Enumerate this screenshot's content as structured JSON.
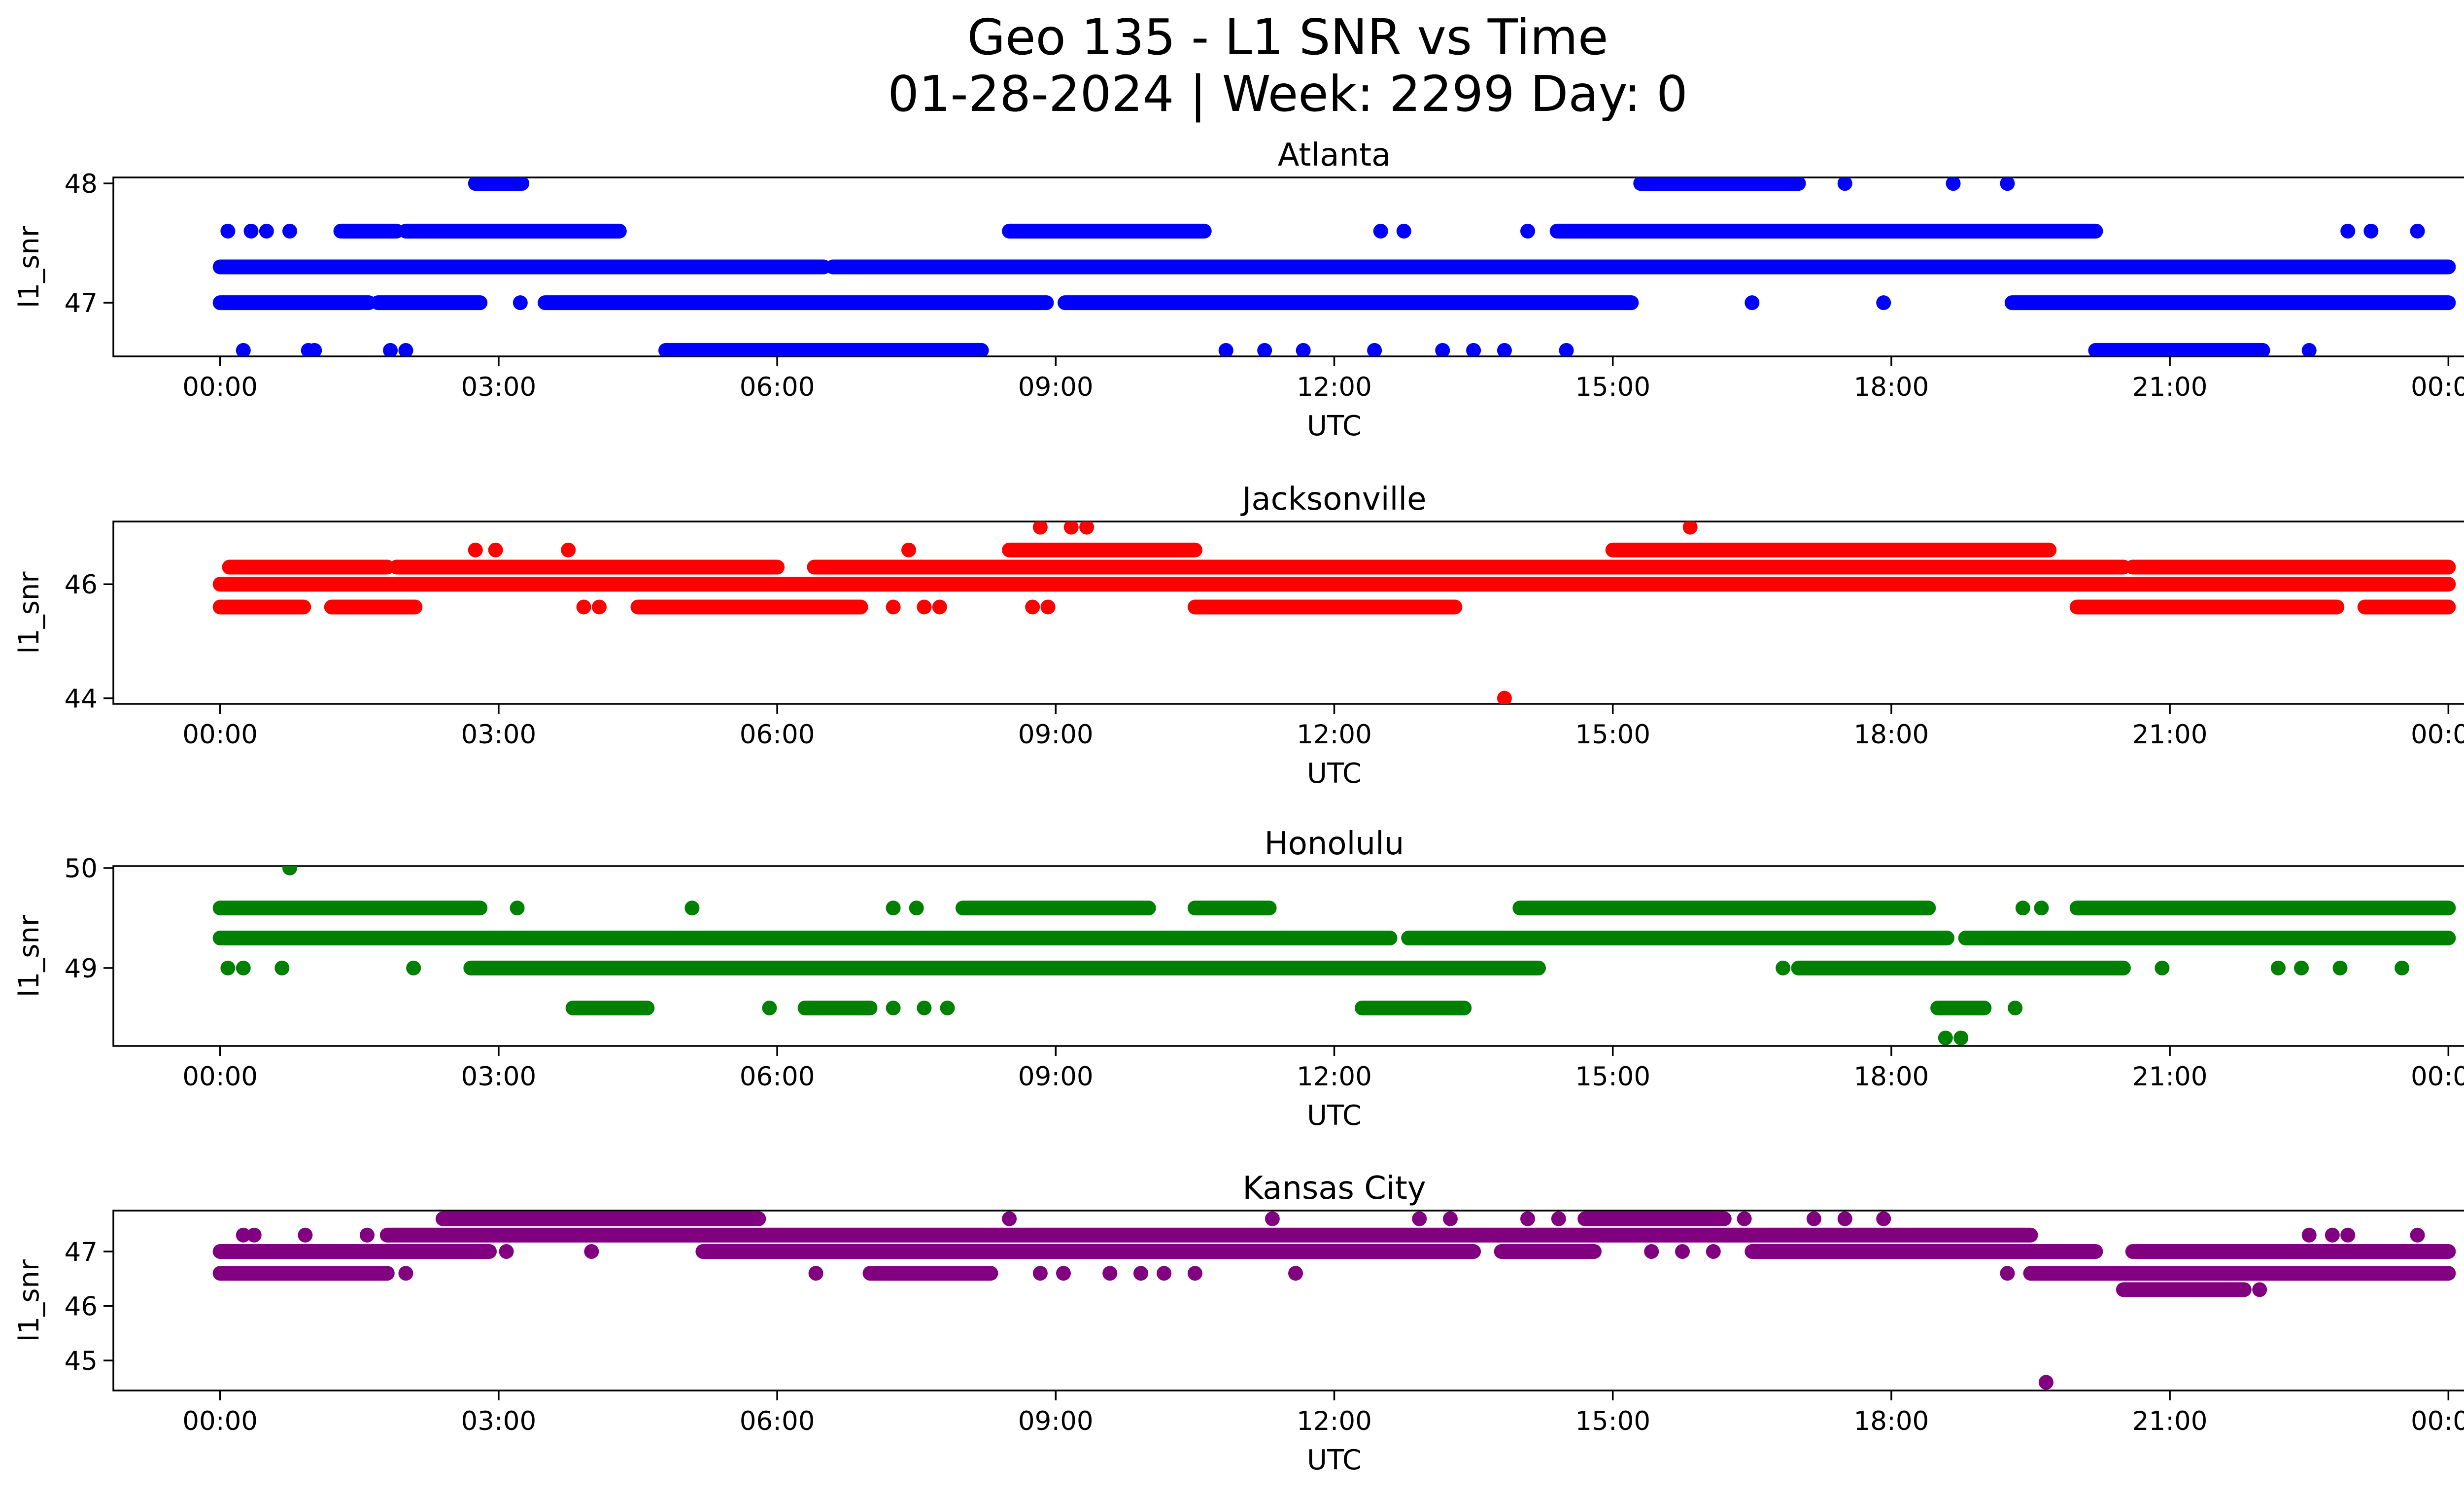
{
  "figure": {
    "title_line1": "Geo 135 - L1 SNR vs Time",
    "title_line2": "01-28-2024 | Week: 2299 Day: 0"
  },
  "chart_data": [
    {
      "type": "scatter",
      "title": "Atlanta",
      "xlabel": "UTC",
      "ylabel": "l1_snr",
      "color": "#0000ff",
      "xlim_hours": [
        -1.15,
        25.15
      ],
      "ylim": [
        46.55,
        48.05
      ],
      "xticks": [
        "00:00",
        "03:00",
        "06:00",
        "09:00",
        "12:00",
        "15:00",
        "18:00",
        "21:00",
        "00:00"
      ],
      "yticks": [
        47,
        48
      ],
      "grid": false,
      "segments": [
        {
          "y": 47.3,
          "x": [
            [
              0.0,
              6.5
            ],
            [
              6.6,
              15.2
            ],
            [
              15.2,
              24.0
            ]
          ]
        },
        {
          "y": 47.0,
          "x": [
            [
              0.0,
              1.6
            ],
            [
              1.7,
              2.8
            ],
            [
              3.5,
              8.9
            ],
            [
              9.1,
              15.2
            ],
            [
              19.3,
              24.0
            ]
          ]
        },
        {
          "y": 47.6,
          "x": [
            [
              1.3,
              1.9
            ],
            [
              2.0,
              4.3
            ],
            [
              8.5,
              10.6
            ],
            [
              14.4,
              20.2
            ]
          ]
        },
        {
          "y": 46.6,
          "x": [
            [
              4.8,
              8.2
            ],
            [
              20.2,
              22.0
            ]
          ]
        },
        {
          "y": 48.0,
          "x": [
            [
              2.75,
              3.25
            ],
            [
              15.3,
              17.0
            ]
          ]
        }
      ],
      "points": [
        {
          "t": "00:05",
          "y": 47.6
        },
        {
          "t": "00:20",
          "y": 47.6
        },
        {
          "t": "00:30",
          "y": 47.6
        },
        {
          "t": "00:45",
          "y": 47.6
        },
        {
          "t": "00:15",
          "y": 46.6
        },
        {
          "t": "00:57",
          "y": 46.6
        },
        {
          "t": "01:01",
          "y": 46.6
        },
        {
          "t": "01:50",
          "y": 46.6
        },
        {
          "t": "02:00",
          "y": 46.6
        },
        {
          "t": "03:14",
          "y": 47.0
        },
        {
          "t": "10:50",
          "y": 46.6
        },
        {
          "t": "11:15",
          "y": 46.6
        },
        {
          "t": "11:40",
          "y": 46.6
        },
        {
          "t": "12:26",
          "y": 46.6
        },
        {
          "t": "12:30",
          "y": 47.6
        },
        {
          "t": "12:45",
          "y": 47.6
        },
        {
          "t": "13:10",
          "y": 46.6
        },
        {
          "t": "13:30",
          "y": 46.6
        },
        {
          "t": "13:50",
          "y": 46.6
        },
        {
          "t": "14:05",
          "y": 47.6
        },
        {
          "t": "14:30",
          "y": 46.6
        },
        {
          "t": "16:30",
          "y": 47.0
        },
        {
          "t": "17:30",
          "y": 48.0
        },
        {
          "t": "17:55",
          "y": 47.0
        },
        {
          "t": "18:40",
          "y": 48.0
        },
        {
          "t": "19:15",
          "y": 48.0
        },
        {
          "t": "22:30",
          "y": 46.6
        },
        {
          "t": "22:55",
          "y": 47.6
        },
        {
          "t": "23:10",
          "y": 47.6
        },
        {
          "t": "23:40",
          "y": 47.6
        }
      ]
    },
    {
      "type": "scatter",
      "title": "Jacksonville",
      "xlabel": "UTC",
      "ylabel": "l1_snr",
      "color": "#ff0000",
      "xlim_hours": [
        -1.15,
        25.15
      ],
      "ylim": [
        43.9,
        47.1
      ],
      "xticks": [
        "00:00",
        "03:00",
        "06:00",
        "09:00",
        "12:00",
        "15:00",
        "18:00",
        "21:00",
        "00:00"
      ],
      "yticks": [
        44,
        46
      ],
      "grid": false,
      "segments": [
        {
          "y": 46.0,
          "x": [
            [
              0.0,
              24.0
            ]
          ]
        },
        {
          "y": 46.3,
          "x": [
            [
              0.1,
              1.8
            ],
            [
              1.9,
              6.0
            ],
            [
              6.4,
              20.5
            ],
            [
              20.6,
              24.0
            ]
          ]
        },
        {
          "y": 45.6,
          "x": [
            [
              0.0,
              0.9
            ],
            [
              1.2,
              2.1
            ],
            [
              4.5,
              6.9
            ],
            [
              10.5,
              13.3
            ],
            [
              20.0,
              22.8
            ],
            [
              23.1,
              24.0
            ]
          ]
        },
        {
          "y": 46.6,
          "x": [
            [
              8.5,
              10.5
            ],
            [
              15.0,
              19.7
            ]
          ]
        }
      ],
      "points": [
        {
          "t": "01:15",
          "y": 45.6
        },
        {
          "t": "02:45",
          "y": 46.6
        },
        {
          "t": "02:58",
          "y": 46.6
        },
        {
          "t": "03:45",
          "y": 46.6
        },
        {
          "t": "03:55",
          "y": 45.6
        },
        {
          "t": "04:05",
          "y": 45.6
        },
        {
          "t": "07:25",
          "y": 46.6
        },
        {
          "t": "07:15",
          "y": 45.6
        },
        {
          "t": "07:35",
          "y": 45.6
        },
        {
          "t": "07:45",
          "y": 45.6
        },
        {
          "t": "08:45",
          "y": 45.6
        },
        {
          "t": "08:55",
          "y": 45.6
        },
        {
          "t": "08:50",
          "y": 47.0
        },
        {
          "t": "09:10",
          "y": 47.0
        },
        {
          "t": "09:20",
          "y": 47.0
        },
        {
          "t": "12:50",
          "y": 45.6
        },
        {
          "t": "13:50",
          "y": 44.0
        },
        {
          "t": "15:50",
          "y": 47.0
        }
      ]
    },
    {
      "type": "scatter",
      "title": "Honolulu",
      "xlabel": "UTC",
      "ylabel": "l1_snr",
      "color": "#008000",
      "xlim_hours": [
        -1.15,
        25.15
      ],
      "ylim": [
        48.22,
        50.02
      ],
      "xticks": [
        "00:00",
        "03:00",
        "06:00",
        "09:00",
        "12:00",
        "15:00",
        "18:00",
        "21:00",
        "00:00"
      ],
      "yticks": [
        49,
        50
      ],
      "grid": false,
      "segments": [
        {
          "y": 49.3,
          "x": [
            [
              0.0,
              12.6
            ],
            [
              12.8,
              18.6
            ],
            [
              18.8,
              24.0
            ]
          ]
        },
        {
          "y": 49.6,
          "x": [
            [
              0.0,
              2.8
            ],
            [
              8.0,
              10.0
            ],
            [
              10.5,
              11.3
            ],
            [
              14.0,
              18.4
            ],
            [
              20.0,
              24.0
            ]
          ]
        },
        {
          "y": 49.0,
          "x": [
            [
              2.7,
              14.2
            ],
            [
              17.0,
              20.5
            ]
          ]
        },
        {
          "y": 48.6,
          "x": [
            [
              3.8,
              4.6
            ],
            [
              6.3,
              7.0
            ],
            [
              12.3,
              13.4
            ],
            [
              18.5,
              19.0
            ]
          ]
        }
      ],
      "points": [
        {
          "t": "00:05",
          "y": 49.0
        },
        {
          "t": "00:15",
          "y": 49.0
        },
        {
          "t": "00:40",
          "y": 49.0
        },
        {
          "t": "00:45",
          "y": 50.0
        },
        {
          "t": "02:05",
          "y": 49.0
        },
        {
          "t": "03:12",
          "y": 49.6
        },
        {
          "t": "05:05",
          "y": 49.6
        },
        {
          "t": "05:55",
          "y": 48.6
        },
        {
          "t": "07:15",
          "y": 49.6
        },
        {
          "t": "07:30",
          "y": 49.6
        },
        {
          "t": "07:15",
          "y": 48.6
        },
        {
          "t": "07:35",
          "y": 48.6
        },
        {
          "t": "07:50",
          "y": 48.6
        },
        {
          "t": "16:50",
          "y": 49.0
        },
        {
          "t": "18:35",
          "y": 48.3
        },
        {
          "t": "18:45",
          "y": 48.3
        },
        {
          "t": "19:20",
          "y": 48.6
        },
        {
          "t": "19:25",
          "y": 49.6
        },
        {
          "t": "19:37",
          "y": 49.6
        },
        {
          "t": "20:55",
          "y": 49.0
        },
        {
          "t": "22:10",
          "y": 49.0
        },
        {
          "t": "22:25",
          "y": 49.0
        },
        {
          "t": "22:50",
          "y": 49.0
        },
        {
          "t": "23:30",
          "y": 49.0
        }
      ]
    },
    {
      "type": "scatter",
      "title": "Kansas City",
      "xlabel": "UTC",
      "ylabel": "l1_snr",
      "color": "#800080",
      "xlim_hours": [
        -1.15,
        25.15
      ],
      "ylim": [
        44.45,
        47.75
      ],
      "xticks": [
        "00:00",
        "03:00",
        "06:00",
        "09:00",
        "12:00",
        "15:00",
        "18:00",
        "21:00",
        "00:00"
      ],
      "yticks": [
        45,
        46,
        47
      ],
      "grid": false,
      "segments": [
        {
          "y": 47.0,
          "x": [
            [
              0.0,
              2.9
            ],
            [
              5.2,
              13.5
            ],
            [
              13.8,
              14.8
            ],
            [
              16.5,
              20.2
            ],
            [
              20.6,
              24.0
            ]
          ]
        },
        {
          "y": 46.6,
          "x": [
            [
              0.0,
              1.8
            ],
            [
              7.0,
              8.3
            ],
            [
              19.5,
              24.0
            ]
          ]
        },
        {
          "y": 47.3,
          "x": [
            [
              1.8,
              19.5
            ]
          ]
        },
        {
          "y": 47.6,
          "x": [
            [
              2.4,
              5.8
            ],
            [
              14.7,
              16.2
            ]
          ]
        },
        {
          "y": 46.3,
          "x": [
            [
              20.5,
              21.8
            ]
          ]
        }
      ],
      "points": [
        {
          "t": "00:15",
          "y": 47.3
        },
        {
          "t": "00:22",
          "y": 47.3
        },
        {
          "t": "00:55",
          "y": 47.3
        },
        {
          "t": "01:35",
          "y": 47.3
        },
        {
          "t": "02:00",
          "y": 46.6
        },
        {
          "t": "03:05",
          "y": 47.0
        },
        {
          "t": "04:00",
          "y": 47.0
        },
        {
          "t": "06:25",
          "y": 46.6
        },
        {
          "t": "08:30",
          "y": 47.6
        },
        {
          "t": "08:50",
          "y": 46.6
        },
        {
          "t": "09:05",
          "y": 46.6
        },
        {
          "t": "09:35",
          "y": 46.6
        },
        {
          "t": "09:55",
          "y": 46.6
        },
        {
          "t": "10:10",
          "y": 46.6
        },
        {
          "t": "10:30",
          "y": 46.6
        },
        {
          "t": "11:20",
          "y": 47.6
        },
        {
          "t": "11:35",
          "y": 46.6
        },
        {
          "t": "12:55",
          "y": 47.6
        },
        {
          "t": "13:15",
          "y": 47.6
        },
        {
          "t": "14:05",
          "y": 47.6
        },
        {
          "t": "14:25",
          "y": 47.6
        },
        {
          "t": "15:25",
          "y": 47.0
        },
        {
          "t": "15:45",
          "y": 47.0
        },
        {
          "t": "16:05",
          "y": 47.0
        },
        {
          "t": "16:25",
          "y": 47.6
        },
        {
          "t": "17:10",
          "y": 47.6
        },
        {
          "t": "17:30",
          "y": 47.6
        },
        {
          "t": "17:55",
          "y": 47.6
        },
        {
          "t": "19:15",
          "y": 46.6
        },
        {
          "t": "19:40",
          "y": 44.6
        },
        {
          "t": "21:40",
          "y": 46.3
        },
        {
          "t": "21:58",
          "y": 46.3
        },
        {
          "t": "22:30",
          "y": 47.3
        },
        {
          "t": "22:45",
          "y": 47.3
        },
        {
          "t": "22:55",
          "y": 47.3
        },
        {
          "t": "23:15",
          "y": 47.0
        },
        {
          "t": "23:40",
          "y": 47.3
        }
      ]
    }
  ]
}
